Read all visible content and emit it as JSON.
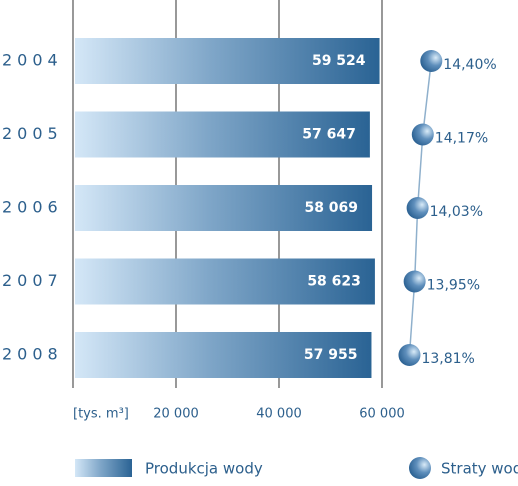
{
  "chart_data": {
    "type": "bar",
    "categories": [
      "2004",
      "2005",
      "2006",
      "2007",
      "2008"
    ],
    "series": [
      {
        "name": "Produkcja wody",
        "color": "#2c6696",
        "values": [
          59524,
          57647,
          58069,
          58623,
          57955
        ],
        "value_labels": [
          "59 524",
          "57 647",
          "58 069",
          "58 623",
          "57 955"
        ]
      },
      {
        "name": "Straty wody",
        "type": "line",
        "axis": "x2",
        "color": "#2c6696",
        "values": [
          14.4,
          14.17,
          14.03,
          13.95,
          13.81
        ],
        "value_labels": [
          "14,40%",
          "14,17%",
          "14,03%",
          "13,95%",
          "13,81%"
        ]
      }
    ],
    "xlim": [
      0,
      60000
    ],
    "xticks": [
      {
        "value": 0,
        "label": "[tys. m³]"
      },
      {
        "value": 20000,
        "label": "20 000"
      },
      {
        "value": 40000,
        "label": "40 000"
      },
      {
        "value": 60000,
        "label": "60 000"
      }
    ],
    "x2lim": [
      13.5,
      14.5
    ],
    "grid": true
  }
}
